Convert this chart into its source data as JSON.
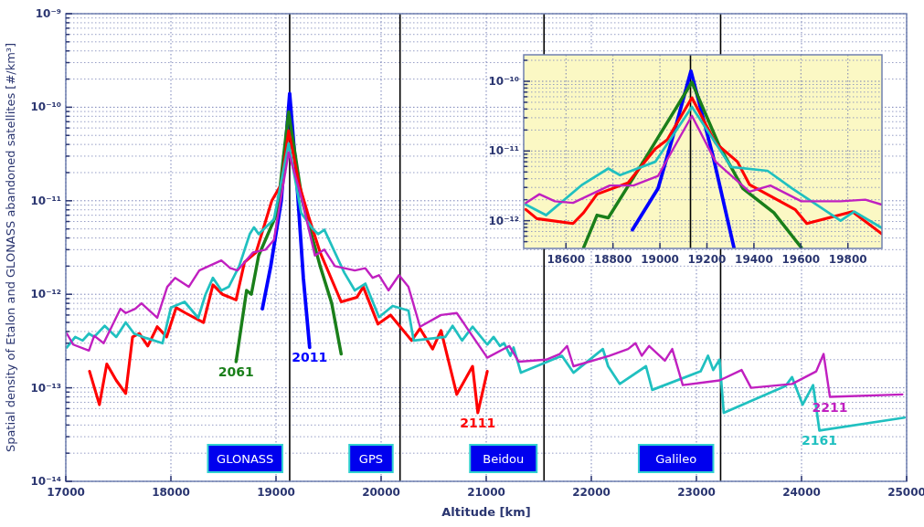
{
  "chart_data": [
    {
      "type": "line",
      "xlabel": "Altitude [km]",
      "ylabel": "Spatial density of Etalon and GLONASS abandoned satellites [#/km³]",
      "log": "y",
      "grid": true,
      "xlim": [
        17000,
        25000
      ],
      "xticks": [
        17000,
        18000,
        19000,
        20000,
        21000,
        22000,
        23000,
        24000,
        25000
      ],
      "ylim": [
        1e-14,
        1e-09
      ],
      "yticks": [
        {
          "value": 1e-14,
          "label": "10⁻¹⁴"
        },
        {
          "value": 2e-14,
          "label": null
        },
        {
          "value": 3e-14,
          "label": null
        },
        {
          "value": 4e-14,
          "label": null
        },
        {
          "value": 5e-14,
          "label": null
        },
        {
          "value": 6e-14,
          "label": null
        },
        {
          "value": 7e-14,
          "label": null
        },
        {
          "value": 8e-14,
          "label": null
        },
        {
          "value": 9e-14,
          "label": null
        },
        {
          "value": 1e-13,
          "label": "10⁻¹³"
        },
        {
          "value": 2e-13,
          "label": null
        },
        {
          "value": 3e-13,
          "label": null
        },
        {
          "value": 4e-13,
          "label": null
        },
        {
          "value": 5e-13,
          "label": null
        },
        {
          "value": 6e-13,
          "label": null
        },
        {
          "value": 7e-13,
          "label": null
        },
        {
          "value": 8e-13,
          "label": null
        },
        {
          "value": 9e-13,
          "label": null
        },
        {
          "value": 1e-12,
          "label": "10⁻¹²"
        },
        {
          "value": 2e-12,
          "label": null
        },
        {
          "value": 3e-12,
          "label": null
        },
        {
          "value": 4e-12,
          "label": null
        },
        {
          "value": 5e-12,
          "label": null
        },
        {
          "value": 6e-12,
          "label": null
        },
        {
          "value": 7e-12,
          "label": null
        },
        {
          "value": 8e-12,
          "label": null
        },
        {
          "value": 9e-12,
          "label": null
        },
        {
          "value": 1e-11,
          "label": "10⁻¹¹"
        },
        {
          "value": 2e-11,
          "label": null
        },
        {
          "value": 3e-11,
          "label": null
        },
        {
          "value": 4e-11,
          "label": null
        },
        {
          "value": 5e-11,
          "label": null
        },
        {
          "value": 6e-11,
          "label": null
        },
        {
          "value": 7e-11,
          "label": null
        },
        {
          "value": 8e-11,
          "label": null
        },
        {
          "value": 9e-11,
          "label": null
        },
        {
          "value": 1e-10,
          "label": "10⁻¹⁰"
        },
        {
          "value": 2e-10,
          "label": null
        },
        {
          "value": 3e-10,
          "label": null
        },
        {
          "value": 4e-10,
          "label": null
        },
        {
          "value": 5e-10,
          "label": null
        },
        {
          "value": 6e-10,
          "label": null
        },
        {
          "value": 7e-10,
          "label": null
        },
        {
          "value": 8e-10,
          "label": null
        },
        {
          "value": 9e-10,
          "label": null
        },
        {
          "value": 1e-09,
          "label": "10⁻⁹"
        }
      ],
      "ref_lines": [
        {
          "axis": "x",
          "value": 19130,
          "label": "GLONASS",
          "color": "#000000"
        },
        {
          "axis": "x",
          "value": 20180,
          "label": "GPS",
          "color": "#000000"
        },
        {
          "axis": "x",
          "value": 21550,
          "label": "Beidou",
          "color": "#000000"
        },
        {
          "axis": "x",
          "value": 23230,
          "label": "Galileo",
          "color": "#000000"
        }
      ],
      "series": [
        {
          "name": "2011",
          "color": "#0000ff",
          "x": [
            18870,
            18950,
            19050,
            19130,
            19200,
            19260,
            19320
          ],
          "values": [
            7e-13,
            2e-12,
            1e-11,
            1.4e-10,
            1.5e-11,
            1.5e-12,
            2.7e-13
          ]
        },
        {
          "name": "2061",
          "color": "#1a7f1a",
          "x": [
            18620,
            18720,
            18765,
            18835,
            19010,
            19120,
            19250,
            19420,
            19530,
            19620
          ],
          "values": [
            1.9e-13,
            1.1e-12,
            1e-12,
            2.6e-12,
            7.4e-12,
            8.9e-11,
            1e-11,
            2e-12,
            8e-13,
            2.3e-13
          ]
        },
        {
          "name": "2111",
          "color": "#ff0000",
          "x": [
            17226,
            17320,
            17390,
            17480,
            17570,
            17635,
            17700,
            17780,
            17870,
            17960,
            18050,
            18140,
            18310,
            18400,
            18490,
            18620,
            18700,
            18810,
            18960,
            19050,
            19120,
            19220,
            19310,
            19420,
            19620,
            19770,
            19830,
            19970,
            20090,
            20290,
            20370,
            20490,
            20570,
            20720,
            20870,
            20920,
            21010
          ],
          "values": [
            1.5e-13,
            6.6e-14,
            1.8e-13,
            1.2e-13,
            8.7e-14,
            3.5e-13,
            3.8e-13,
            2.8e-13,
            4.5e-13,
            3.5e-13,
            7.2e-13,
            6.3e-13,
            5e-13,
            1.26e-12,
            1e-12,
            8.7e-13,
            2.2e-12,
            2.8e-12,
            1e-11,
            1.5e-11,
            5.6e-11,
            1.5e-11,
            6.8e-12,
            2.8e-12,
            8.3e-13,
            9.3e-13,
            1.2e-12,
            4.8e-13,
            6e-13,
            3.2e-13,
            4.3e-13,
            2.6e-13,
            4.1e-13,
            8.5e-14,
            1.7e-13,
            5.4e-14,
            1.5e-13
          ]
        },
        {
          "name": "2161",
          "color": "#20c0c0",
          "x": [
            17010,
            17090,
            17160,
            17220,
            17270,
            17370,
            17480,
            17570,
            17650,
            17765,
            17920,
            18000,
            18130,
            18260,
            18330,
            18400,
            18480,
            18550,
            18650,
            18750,
            18790,
            18835,
            18980,
            19120,
            19240,
            19350,
            19400,
            19460,
            19650,
            19750,
            19850,
            19980,
            20110,
            20260,
            20310,
            20610,
            20680,
            20770,
            20870,
            21010,
            21070,
            21130,
            21170,
            21230,
            21260,
            21330,
            21720,
            21830,
            22110,
            22160,
            22270,
            22520,
            22580,
            23040,
            23110,
            23160,
            23220,
            23260,
            23850,
            23910,
            24010,
            24110,
            24170,
            24980
          ],
          "values": [
            2.7e-13,
            3.5e-13,
            3.2e-13,
            3.8e-13,
            3.5e-13,
            4.6e-13,
            3.5e-13,
            5e-13,
            3.8e-13,
            3.4e-13,
            3e-13,
            7.2e-13,
            8.3e-13,
            5.6e-13,
            1e-12,
            1.5e-12,
            1.1e-12,
            1.2e-12,
            2e-12,
            4.4e-12,
            5.2e-12,
            4.4e-12,
            6.3e-12,
            4.1e-11,
            7.4e-12,
            5e-12,
            4.4e-12,
            4.9e-12,
            1.7e-12,
            1.1e-12,
            1.3e-12,
            5.7e-13,
            7.5e-13,
            6.7e-13,
            3.2e-13,
            3.5e-13,
            4.6e-13,
            3.2e-13,
            4.5e-13,
            2.9e-13,
            3.5e-13,
            2.8e-13,
            3e-13,
            2.2e-13,
            2.7e-13,
            1.45e-13,
            2.2e-13,
            1.45e-13,
            2.6e-13,
            1.7e-13,
            1.1e-13,
            1.7e-13,
            9.5e-14,
            1.5e-13,
            2.2e-13,
            1.55e-13,
            2e-13,
            5.4e-14,
            1.05e-13,
            1.3e-13,
            6.6e-14,
            1.07e-13,
            3.5e-14,
            4.8e-14
          ]
        },
        {
          "name": "2211",
          "color": "#c020c0",
          "x": [
            17010,
            17070,
            17220,
            17270,
            17360,
            17520,
            17570,
            17660,
            17720,
            17870,
            17965,
            18040,
            18170,
            18270,
            18360,
            18480,
            18565,
            18635,
            18780,
            18900,
            18980,
            19120,
            19240,
            19370,
            19460,
            19560,
            19750,
            19850,
            19920,
            19980,
            20070,
            20170,
            20260,
            20370,
            20570,
            20720,
            21010,
            21220,
            21310,
            21570,
            21700,
            21770,
            21830,
            22170,
            22350,
            22420,
            22480,
            22550,
            22700,
            22770,
            22870,
            23220,
            23430,
            23520,
            23910,
            24140,
            24210,
            24270,
            24960
          ],
          "values": [
            3.8e-13,
            2.9e-13,
            2.5e-13,
            3.6e-13,
            3e-13,
            7e-13,
            6.3e-13,
            7e-13,
            8e-13,
            5.6e-13,
            1.2e-12,
            1.5e-12,
            1.2e-12,
            1.8e-12,
            2e-12,
            2.3e-12,
            1.9e-12,
            1.8e-12,
            2.8e-12,
            3e-12,
            3.8e-12,
            3.3e-11,
            1.1e-11,
            2.6e-12,
            3e-12,
            2e-12,
            1.8e-12,
            1.9e-12,
            1.5e-12,
            1.6e-12,
            1.1e-12,
            1.6e-12,
            1.2e-12,
            4.5e-13,
            6e-13,
            6.3e-13,
            2.1e-13,
            2.8e-13,
            1.9e-13,
            2e-13,
            2.3e-13,
            2.8e-13,
            1.7e-13,
            2.2e-13,
            2.6e-13,
            3e-13,
            2.2e-13,
            2.8e-13,
            1.95e-13,
            2.6e-13,
            1.07e-13,
            1.2e-13,
            1.55e-13,
            1e-13,
            1.1e-13,
            1.5e-13,
            2.3e-13,
            8e-14,
            8.5e-14
          ]
        }
      ]
    },
    {
      "type": "line",
      "log": "y",
      "grid": true,
      "xlim": [
        18420,
        19945
      ],
      "xticks": [
        18600,
        18800,
        19000,
        19200,
        19400,
        19600,
        19800
      ],
      "ylim": [
        4e-13,
        2.4e-10
      ],
      "yticks": [
        {
          "value": 5e-13,
          "label": null
        },
        {
          "value": 6e-13,
          "label": null
        },
        {
          "value": 7e-13,
          "label": null
        },
        {
          "value": 8e-13,
          "label": null
        },
        {
          "value": 9e-13,
          "label": null
        },
        {
          "value": 1e-12,
          "label": "10⁻¹²"
        },
        {
          "value": 2e-12,
          "label": null
        },
        {
          "value": 3e-12,
          "label": null
        },
        {
          "value": 4e-12,
          "label": null
        },
        {
          "value": 5e-12,
          "label": null
        },
        {
          "value": 6e-12,
          "label": null
        },
        {
          "value": 7e-12,
          "label": null
        },
        {
          "value": 8e-12,
          "label": null
        },
        {
          "value": 9e-12,
          "label": null
        },
        {
          "value": 1e-11,
          "label": "10⁻¹¹"
        },
        {
          "value": 2e-11,
          "label": null
        },
        {
          "value": 3e-11,
          "label": null
        },
        {
          "value": 4e-11,
          "label": null
        },
        {
          "value": 5e-11,
          "label": null
        },
        {
          "value": 6e-11,
          "label": null
        },
        {
          "value": 7e-11,
          "label": null
        },
        {
          "value": 8e-11,
          "label": null
        },
        {
          "value": 9e-11,
          "label": null
        },
        {
          "value": 1e-10,
          "label": "10⁻¹⁰"
        },
        {
          "value": 2e-10,
          "label": null
        }
      ],
      "ref_lines": [
        {
          "axis": "x",
          "value": 19130,
          "label": null,
          "color": "#000000"
        }
      ],
      "series": [
        {
          "color": "#0000ff",
          "x": [
            18883,
            18992,
            19062,
            19132,
            19225,
            19315
          ],
          "values": [
            7.4e-13,
            2.9e-12,
            1.95e-11,
            1.4e-10,
            8.7e-12,
            4.1e-13
          ]
        },
        {
          "color": "#1a7f1a",
          "x": [
            18675,
            18732,
            18780,
            18915,
            19136,
            19252,
            19353,
            19485,
            19602
          ],
          "values": [
            4.1e-13,
            1.2e-12,
            1.1e-12,
            5.9e-12,
            9.7e-11,
            1.2e-11,
            2.9e-12,
            1.3e-12,
            4.1e-13
          ]
        },
        {
          "color": "#ff0000",
          "x": [
            18429,
            18476,
            18630,
            18675,
            18732,
            18864,
            18980,
            19031,
            19136,
            19237,
            19330,
            19381,
            19575,
            19625,
            19819,
            19944
          ],
          "values": [
            1.45e-12,
            1.07e-12,
            9.1e-13,
            1.3e-12,
            2.4e-12,
            3.5e-12,
            1.07e-11,
            1.45e-11,
            5.8e-11,
            1.3e-11,
            7e-12,
            3.3e-12,
            1.45e-12,
            9.1e-13,
            1.35e-12,
            6.5e-13
          ]
        },
        {
          "color": "#20c0c0",
          "x": [
            18429,
            18515,
            18670,
            18780,
            18830,
            18980,
            19136,
            19303,
            19458,
            19563,
            19769,
            19827,
            19944
          ],
          "values": [
            1.7e-12,
            1.2e-12,
            3.3e-12,
            5.6e-12,
            4.5e-12,
            7e-12,
            4.3e-11,
            5.9e-12,
            5.2e-12,
            2.9e-12,
            1e-12,
            1.35e-12,
            7.9e-13
          ]
        },
        {
          "color": "#c020c0",
          "x": [
            18429,
            18487,
            18553,
            18630,
            18786,
            18887,
            18992,
            19136,
            19237,
            19381,
            19470,
            19602,
            19769,
            19874,
            19944
          ],
          "values": [
            1.8e-12,
            2.4e-12,
            1.9e-12,
            1.8e-12,
            3.2e-12,
            3.2e-12,
            4.4e-12,
            3.2e-11,
            7e-12,
            2.6e-12,
            3.2e-12,
            1.9e-12,
            1.9e-12,
            2e-12,
            1.7e-12
          ]
        }
      ]
    }
  ]
}
